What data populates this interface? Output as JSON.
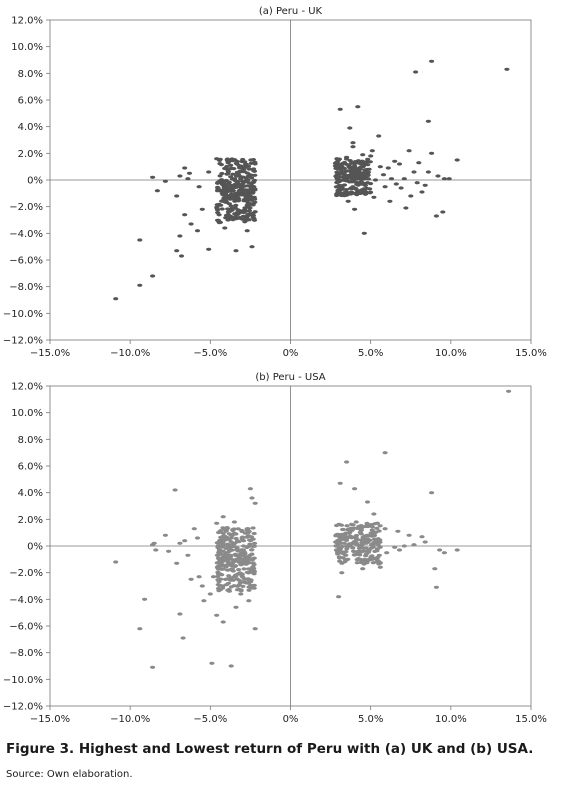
{
  "figure": {
    "caption": "Figure 3. Highest and Lowest return of Peru with (a) UK and (b) USA.",
    "source": "Source: Own elaboration."
  },
  "chart_data": [
    {
      "type": "scatter",
      "title": "(a) Peru - UK",
      "xlabel": "",
      "ylabel": "",
      "xlim": [
        -15,
        15
      ],
      "ylim": [
        -12,
        12
      ],
      "x_ticks": [
        "−15.0%",
        "−10.0%",
        "−5.0%",
        "0%",
        "5.0%",
        "10.0%",
        "15.0%"
      ],
      "y_ticks": [
        "12.0%",
        "10.0%",
        "8.0%",
        "6.0%",
        "4.0%",
        "2.0%",
        "0%",
        "−2.0%",
        "−4.0%",
        "−6.0%",
        "−8.0%",
        "−10.0%",
        "−12.0%"
      ],
      "grid": false,
      "marker_color": "#555555",
      "points": [
        [
          -10.9,
          -8.9
        ],
        [
          -9.4,
          -7.9
        ],
        [
          -8.6,
          -7.2
        ],
        [
          -9.4,
          -4.5
        ],
        [
          -7.1,
          -5.3
        ],
        [
          -6.8,
          -5.7
        ],
        [
          -6.9,
          -4.2
        ],
        [
          -6.6,
          -2.6
        ],
        [
          -6.2,
          -3.3
        ],
        [
          -5.8,
          -3.8
        ],
        [
          -5.5,
          -2.2
        ],
        [
          -5.1,
          -5.2
        ],
        [
          -3.4,
          -5.3
        ],
        [
          -2.4,
          -5.0
        ],
        [
          -3.9,
          -3.0
        ],
        [
          -4.1,
          -3.6
        ],
        [
          -8.3,
          -0.8
        ],
        [
          -7.8,
          -0.1
        ],
        [
          -6.9,
          0.3
        ],
        [
          -6.6,
          0.9
        ],
        [
          -6.3,
          0.5
        ],
        [
          -5.7,
          -0.5
        ],
        [
          -5.1,
          0.6
        ],
        [
          -4.6,
          1.6
        ],
        [
          -2.7,
          -3.8
        ],
        [
          -6.4,
          0.1
        ],
        [
          -8.6,
          0.2
        ],
        [
          -7.1,
          -1.2
        ],
        [
          13.5,
          8.3
        ],
        [
          8.8,
          8.9
        ],
        [
          7.8,
          8.1
        ],
        [
          4.2,
          5.5
        ],
        [
          3.1,
          5.3
        ],
        [
          8.6,
          4.4
        ],
        [
          4.6,
          -4.0
        ],
        [
          10.4,
          1.5
        ],
        [
          7.4,
          2.2
        ],
        [
          8.8,
          2.0
        ],
        [
          9.5,
          -2.4
        ],
        [
          9.1,
          -2.7
        ],
        [
          7.2,
          -2.1
        ],
        [
          6.2,
          -1.6
        ],
        [
          3.6,
          -1.6
        ],
        [
          3.2,
          -1.1
        ],
        [
          4.0,
          -2.2
        ],
        [
          5.1,
          2.2
        ],
        [
          5.5,
          3.3
        ],
        [
          3.9,
          2.5
        ],
        [
          4.4,
          1.2
        ],
        [
          6.8,
          1.2
        ],
        [
          8.4,
          -0.4
        ],
        [
          3.7,
          3.9
        ],
        [
          4.8,
          -0.2
        ],
        [
          5.8,
          0.4
        ],
        [
          6.1,
          0.9
        ],
        [
          6.5,
          1.4
        ],
        [
          7.7,
          0.6
        ],
        [
          8.0,
          1.3
        ],
        [
          9.6,
          0.1
        ],
        [
          9.2,
          0.3
        ],
        [
          8.2,
          -0.9
        ],
        [
          6.9,
          -0.6
        ],
        [
          4.5,
          1.9
        ],
        [
          4.1,
          -0.7
        ],
        [
          5.2,
          -1.3
        ],
        [
          5.6,
          1.0
        ],
        [
          3.3,
          0.2
        ],
        [
          5.9,
          -0.5
        ],
        [
          7.1,
          0.1
        ],
        [
          8.6,
          0.6
        ],
        [
          3.9,
          2.8
        ],
        [
          4.9,
          0.8
        ],
        [
          5.3,
          0.0
        ],
        [
          6.6,
          -0.3
        ],
        [
          7.5,
          -1.2
        ],
        [
          3.5,
          1.7
        ],
        [
          4.3,
          -0.3
        ],
        [
          6.3,
          0.1
        ],
        [
          5.0,
          1.8
        ],
        [
          3.8,
          -0.9
        ],
        [
          9.9,
          0.1
        ],
        [
          7.9,
          -0.2
        ]
      ],
      "dense_clusters": [
        {
          "x_range": [
            -4.6,
            -2.2
          ],
          "y_range": [
            -3.2,
            1.6
          ],
          "count": 330,
          "seed": 11
        },
        {
          "x_range": [
            2.8,
            5.0
          ],
          "y_range": [
            -1.2,
            1.6
          ],
          "count": 220,
          "seed": 23
        }
      ]
    },
    {
      "type": "scatter",
      "title": "(b) Peru - USA",
      "xlabel": "",
      "ylabel": "",
      "xlim": [
        -15,
        15
      ],
      "ylim": [
        -12,
        12
      ],
      "x_ticks": [
        "−15.0%",
        "−10.0%",
        "−5.0%",
        "0%",
        "5.0%",
        "10.0%",
        "15.0%"
      ],
      "y_ticks": [
        "12.0%",
        "10.0%",
        "8.0%",
        "6.0%",
        "4.0%",
        "2.0%",
        "0%",
        "−2.0%",
        "−4.0%",
        "−6.0%",
        "−8.0%",
        "−10.0%",
        "−12.0%"
      ],
      "grid": false,
      "marker_color": "#8a8a8a",
      "points": [
        [
          13.6,
          11.6
        ],
        [
          5.9,
          7.0
        ],
        [
          3.5,
          6.3
        ],
        [
          3.1,
          4.7
        ],
        [
          4.0,
          4.3
        ],
        [
          8.8,
          4.0
        ],
        [
          4.8,
          3.3
        ],
        [
          5.2,
          2.4
        ],
        [
          5.9,
          1.3
        ],
        [
          6.7,
          1.1
        ],
        [
          7.4,
          0.8
        ],
        [
          8.2,
          0.7
        ],
        [
          9.3,
          -0.3
        ],
        [
          10.4,
          -0.3
        ],
        [
          9.6,
          -0.5
        ],
        [
          9.0,
          -1.7
        ],
        [
          9.1,
          -3.1
        ],
        [
          3.0,
          -3.8
        ],
        [
          3.2,
          -2.0
        ],
        [
          6.5,
          -0.1
        ],
        [
          7.1,
          0.0
        ],
        [
          7.7,
          0.1
        ],
        [
          8.4,
          0.3
        ],
        [
          6.0,
          -0.5
        ],
        [
          6.8,
          -0.3
        ],
        [
          5.6,
          -1.6
        ],
        [
          4.5,
          -1.7
        ],
        [
          -7.2,
          4.2
        ],
        [
          -2.5,
          4.3
        ],
        [
          -2.4,
          3.6
        ],
        [
          -2.2,
          3.2
        ],
        [
          -4.6,
          1.7
        ],
        [
          -6.0,
          1.3
        ],
        [
          -4.2,
          2.2
        ],
        [
          -3.5,
          1.8
        ],
        [
          -6.6,
          0.4
        ],
        [
          -8.4,
          -0.3
        ],
        [
          -8.6,
          0.1
        ],
        [
          -7.8,
          0.8
        ],
        [
          -7.6,
          -0.4
        ],
        [
          -6.4,
          -0.7
        ],
        [
          -10.9,
          -1.2
        ],
        [
          -5.7,
          -2.3
        ],
        [
          -5.0,
          -3.6
        ],
        [
          -5.4,
          -4.1
        ],
        [
          -4.6,
          -5.2
        ],
        [
          -4.2,
          -5.7
        ],
        [
          -2.2,
          -6.2
        ],
        [
          -9.4,
          -6.2
        ],
        [
          -6.7,
          -6.9
        ],
        [
          -6.9,
          -5.1
        ],
        [
          -9.1,
          -4.0
        ],
        [
          -6.2,
          -2.5
        ],
        [
          -5.5,
          -3.0
        ],
        [
          -4.8,
          -2.3
        ],
        [
          -3.1,
          -3.6
        ],
        [
          -2.6,
          -4.1
        ],
        [
          -3.4,
          -4.6
        ],
        [
          -8.6,
          -9.1
        ],
        [
          -4.9,
          -8.8
        ],
        [
          -3.7,
          -9.0
        ],
        [
          -8.5,
          0.2
        ],
        [
          -7.1,
          -1.3
        ],
        [
          -5.8,
          0.6
        ],
        [
          -6.9,
          0.2
        ]
      ],
      "dense_clusters": [
        {
          "x_range": [
            -4.6,
            -2.2
          ],
          "y_range": [
            -3.4,
            1.4
          ],
          "count": 300,
          "seed": 37
        },
        {
          "x_range": [
            2.8,
            5.6
          ],
          "y_range": [
            -1.4,
            1.8
          ],
          "count": 240,
          "seed": 53
        }
      ]
    }
  ]
}
